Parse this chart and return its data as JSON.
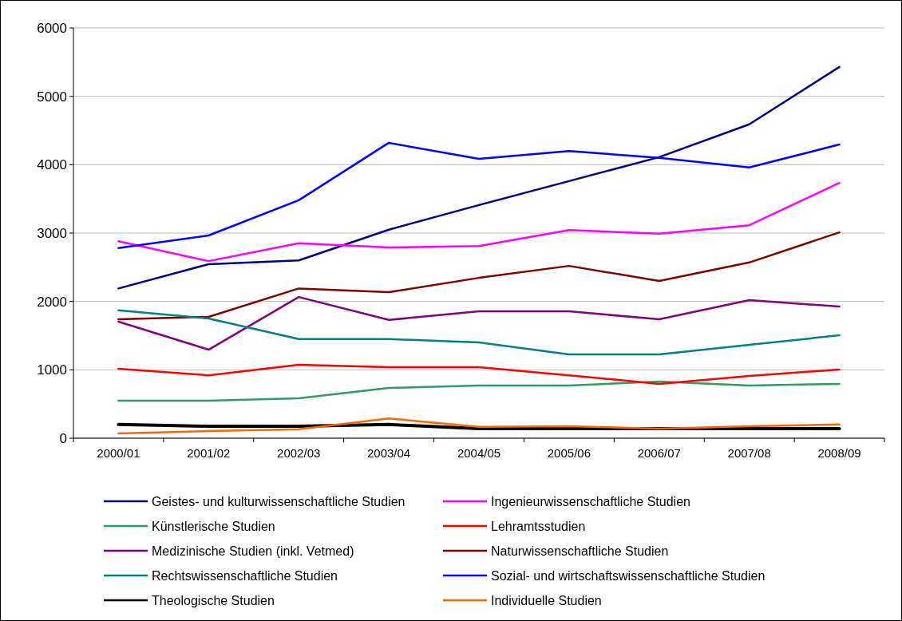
{
  "chart_data": {
    "type": "line",
    "categories": [
      "2000/01",
      "2001/02",
      "2002/03",
      "2003/04",
      "2004/05",
      "2005/06",
      "2006/07",
      "2007/08",
      "2008/09"
    ],
    "ylim": [
      0,
      6000
    ],
    "yticks": [
      0,
      1000,
      2000,
      3000,
      4000,
      5000,
      6000
    ],
    "grid": "y",
    "legend": "bottom",
    "marker": "none",
    "line_style": "solid",
    "series": [
      {
        "name": "Geistes- und kulturwissenschaftliche Studien",
        "color": "#000080",
        "values": [
          2190,
          2545,
          2600,
          3050,
          3410,
          3760,
          4110,
          4590,
          5430
        ]
      },
      {
        "name": "Ingenieurwissenschaftliche Studien",
        "color": "#ff00ff",
        "values": [
          2880,
          2590,
          2850,
          2790,
          2810,
          3045,
          2990,
          3115,
          3735
        ]
      },
      {
        "name": "Künstlerische Studien",
        "color": "#339966",
        "values": [
          550,
          550,
          585,
          735,
          770,
          770,
          830,
          770,
          795
        ]
      },
      {
        "name": "Lehramtsstudien",
        "color": "#ff0000",
        "values": [
          1015,
          920,
          1075,
          1040,
          1040,
          920,
          795,
          910,
          1005
        ]
      },
      {
        "name": "Medizinische Studien (inkl. Vetmed)",
        "color": "#800080",
        "values": [
          1705,
          1295,
          2065,
          1730,
          1855,
          1855,
          1740,
          2020,
          1925
        ]
      },
      {
        "name": "Naturwissenschaftliche Studien",
        "color": "#800000",
        "values": [
          1740,
          1775,
          2190,
          2135,
          2345,
          2520,
          2300,
          2570,
          3010
        ]
      },
      {
        "name": "Rechtswissenschaftliche Studien",
        "color": "#008080",
        "values": [
          1870,
          1750,
          1450,
          1450,
          1400,
          1225,
          1225,
          1365,
          1505
        ]
      },
      {
        "name": "Sozial- und wirtschaftswissenschaftliche Studien",
        "color": "#0000ff",
        "values": [
          2780,
          2965,
          3480,
          4320,
          4085,
          4200,
          4100,
          3960,
          4295
        ]
      },
      {
        "name": "Theologische Studien",
        "color": "#000000",
        "values": [
          200,
          175,
          175,
          200,
          140,
          140,
          140,
          140,
          140
        ]
      },
      {
        "name": "Individuelle Studien",
        "color": "#ff6600",
        "values": [
          70,
          105,
          130,
          290,
          165,
          175,
          140,
          175,
          200
        ]
      }
    ]
  }
}
